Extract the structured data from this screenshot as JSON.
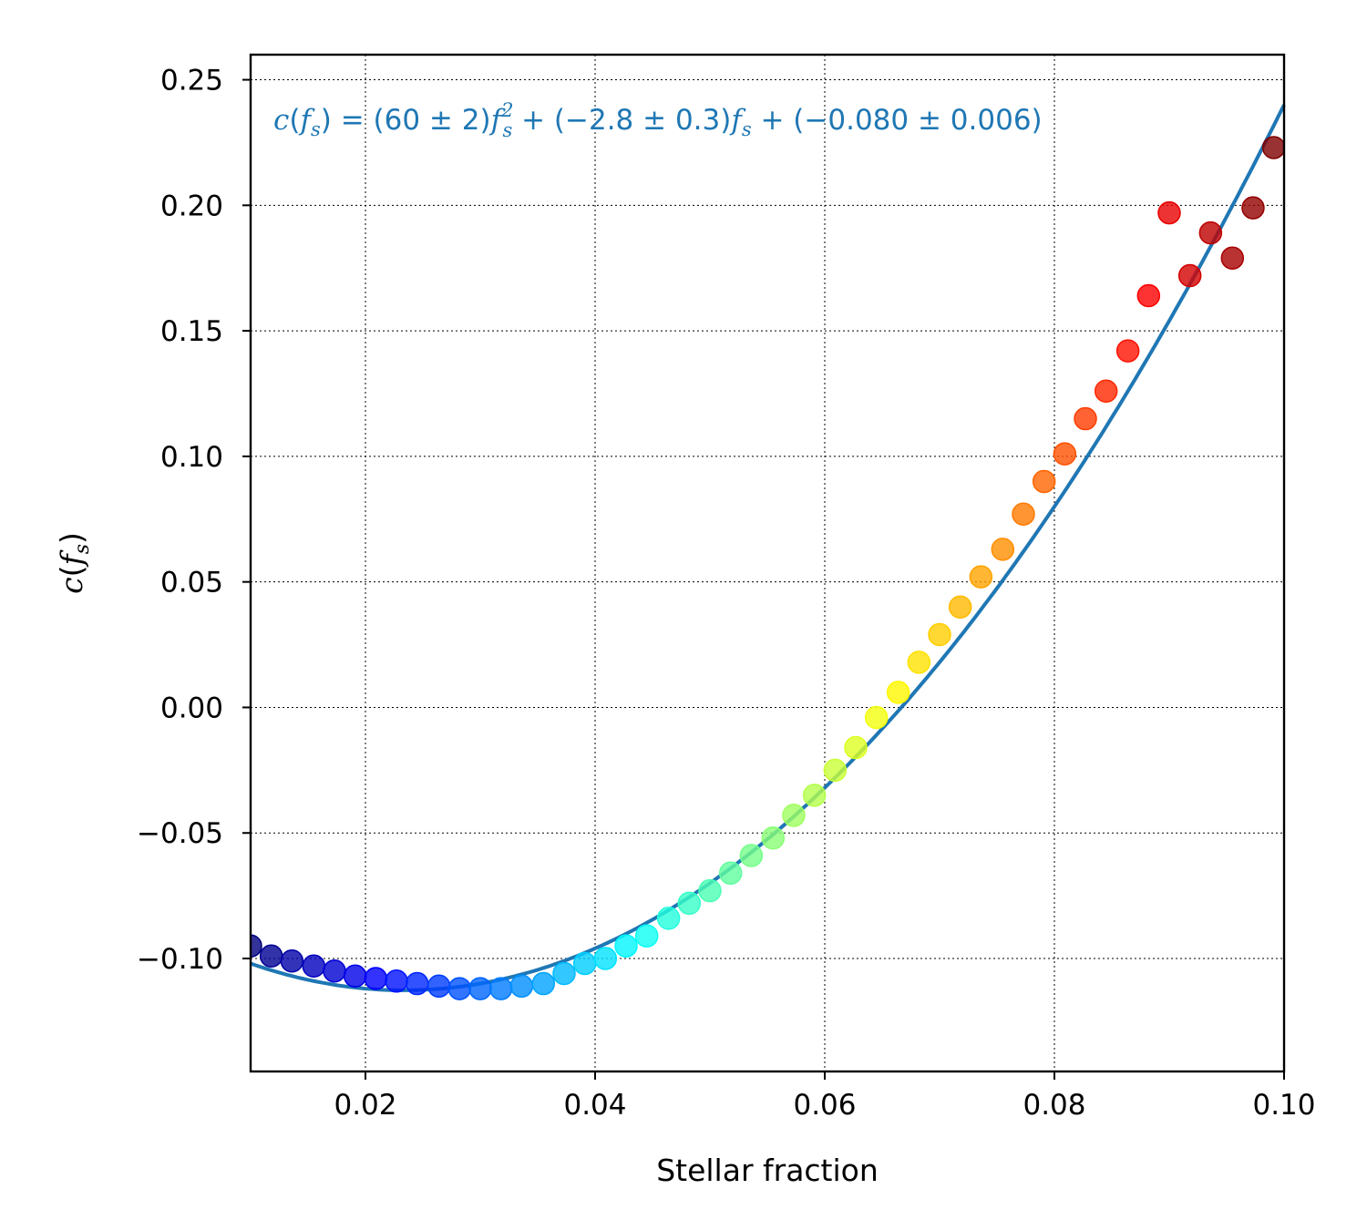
{
  "chart_data": {
    "type": "scatter",
    "xlabel": "Stellar fraction",
    "ylabel": "c(f_s)",
    "ylabel_parts": {
      "fn": "c",
      "open": "(",
      "var": "f",
      "sub": "s",
      "close": ")"
    },
    "xlim": [
      0.01,
      0.1
    ],
    "ylim": [
      -0.145,
      0.26
    ],
    "xticks": [
      0.02,
      0.04,
      0.06,
      0.08,
      0.1
    ],
    "xtick_labels": [
      "0.02",
      "0.04",
      "0.06",
      "0.08",
      "0.10"
    ],
    "yticks": [
      -0.1,
      -0.05,
      0.0,
      0.05,
      0.1,
      0.15,
      0.2,
      0.25
    ],
    "ytick_labels": [
      "−0.10",
      "−0.05",
      "0.00",
      "0.05",
      "0.10",
      "0.15",
      "0.20",
      "0.25"
    ],
    "grid": true,
    "colormap": "jet",
    "fit_color": "#1f77b4",
    "fit": {
      "a": 60,
      "b": -2.8,
      "c": -0.08,
      "annotation": {
        "lhs": "c(f_s) = ",
        "t1": "(60 ± 2)",
        "t2": " + (−2.8 ± 0.3)",
        "t3": " + (−0.080 ± 0.006)"
      }
    },
    "points": {
      "x": [
        0.01,
        0.0118,
        0.0136,
        0.0155,
        0.0173,
        0.0191,
        0.0209,
        0.0227,
        0.0245,
        0.0264,
        0.0282,
        0.03,
        0.0318,
        0.0336,
        0.0355,
        0.0373,
        0.0391,
        0.0409,
        0.0427,
        0.0445,
        0.0464,
        0.0482,
        0.05,
        0.0518,
        0.0536,
        0.0555,
        0.0573,
        0.0591,
        0.0609,
        0.0627,
        0.0645,
        0.0664,
        0.0682,
        0.07,
        0.0718,
        0.0736,
        0.0755,
        0.0773,
        0.0791,
        0.0809,
        0.0827,
        0.0845,
        0.0864,
        0.0882,
        0.09,
        0.0918,
        0.0936,
        0.0955,
        0.0973,
        0.0991
      ],
      "y": [
        -0.095,
        -0.099,
        -0.101,
        -0.103,
        -0.105,
        -0.107,
        -0.108,
        -0.109,
        -0.11,
        -0.111,
        -0.112,
        -0.112,
        -0.112,
        -0.111,
        -0.11,
        -0.106,
        -0.102,
        -0.1,
        -0.095,
        -0.091,
        -0.084,
        -0.078,
        -0.073,
        -0.066,
        -0.059,
        -0.052,
        -0.043,
        -0.035,
        -0.025,
        -0.016,
        -0.004,
        0.006,
        0.018,
        0.029,
        0.04,
        0.052,
        0.063,
        0.077,
        0.09,
        0.101,
        0.115,
        0.126,
        0.142,
        0.164,
        0.197,
        0.172,
        0.189,
        0.179,
        0.199,
        0.223
      ]
    }
  }
}
